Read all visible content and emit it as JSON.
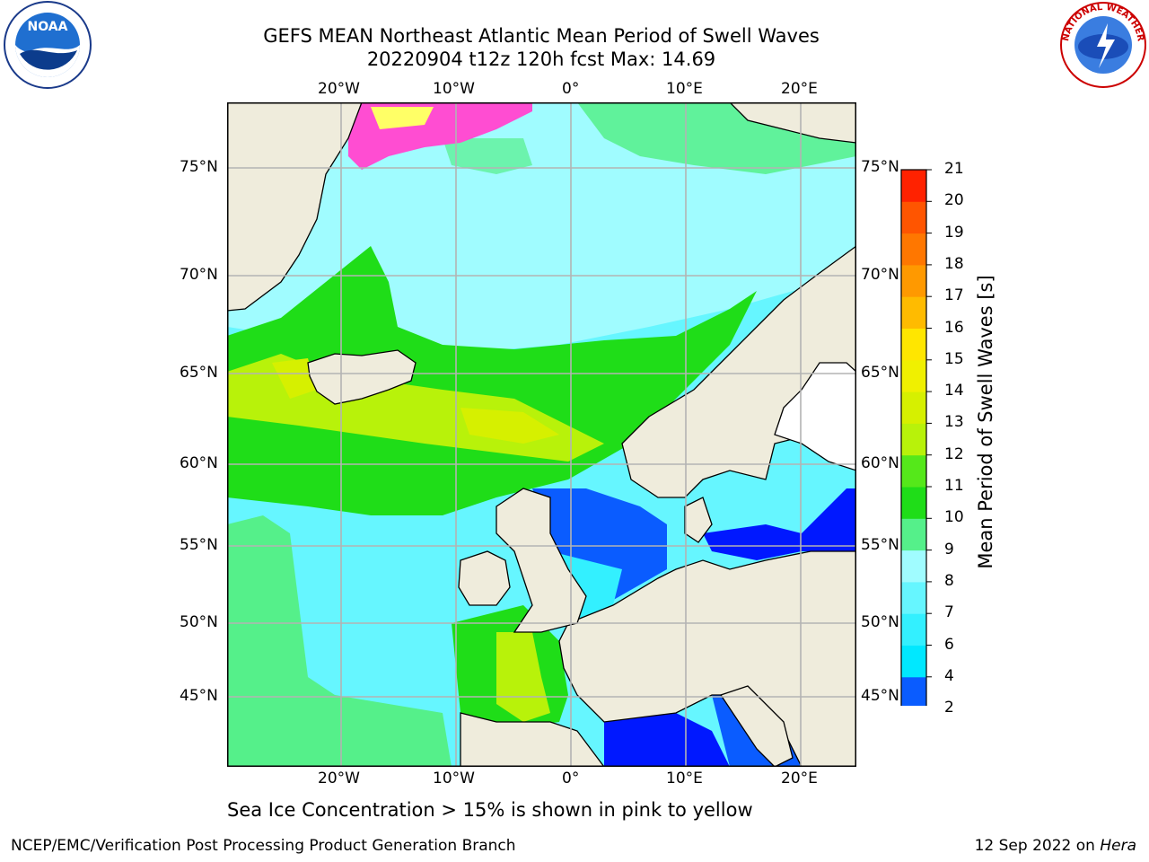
{
  "header": {
    "title_line1": "GEFS MEAN Northeast Atlantic Mean Period of Swell Waves",
    "title_line2": "20220904 t12z 120h fcst   Max: 14.69",
    "left_logo": "noaa-logo",
    "right_logo": "national-weather-service-logo",
    "left_logo_text": "NOAA",
    "right_logo_text": "NATIONAL WEATHER SERVICE"
  },
  "map": {
    "lon_labels": [
      "20°W",
      "10°W",
      "0°",
      "10°E",
      "20°E"
    ],
    "lat_labels": [
      "75°N",
      "70°N",
      "65°N",
      "60°N",
      "55°N",
      "50°N",
      "45°N"
    ],
    "land_color": "#efecdc",
    "gridline_color": "#b3b3b3"
  },
  "colorbar": {
    "label": "Mean Period of Swell Waves [s]",
    "ticks": [
      "2",
      "4",
      "6",
      "7",
      "8",
      "9",
      "10",
      "11",
      "12",
      "13",
      "14",
      "15",
      "16",
      "17",
      "18",
      "19",
      "20",
      "21"
    ],
    "colors": [
      "#0a5cff",
      "#00e8ff",
      "#33f0ff",
      "#66f6ff",
      "#a0fcff",
      "#55f08a",
      "#1fdd18",
      "#55e81a",
      "#b8f20a",
      "#d6f000",
      "#f0f000",
      "#ffe600",
      "#ffbb00",
      "#ff9900",
      "#ff7700",
      "#ff5500",
      "#ff2200"
    ],
    "extend_color": "#0018ff"
  },
  "caption": "Sea Ice Concentration > 15% is shown in pink to yellow",
  "footer": {
    "left": "NCEP/EMC/Verification Post Processing Product Generation Branch",
    "right_prefix": "12 Sep 2022 on ",
    "right_host": "Hera"
  }
}
